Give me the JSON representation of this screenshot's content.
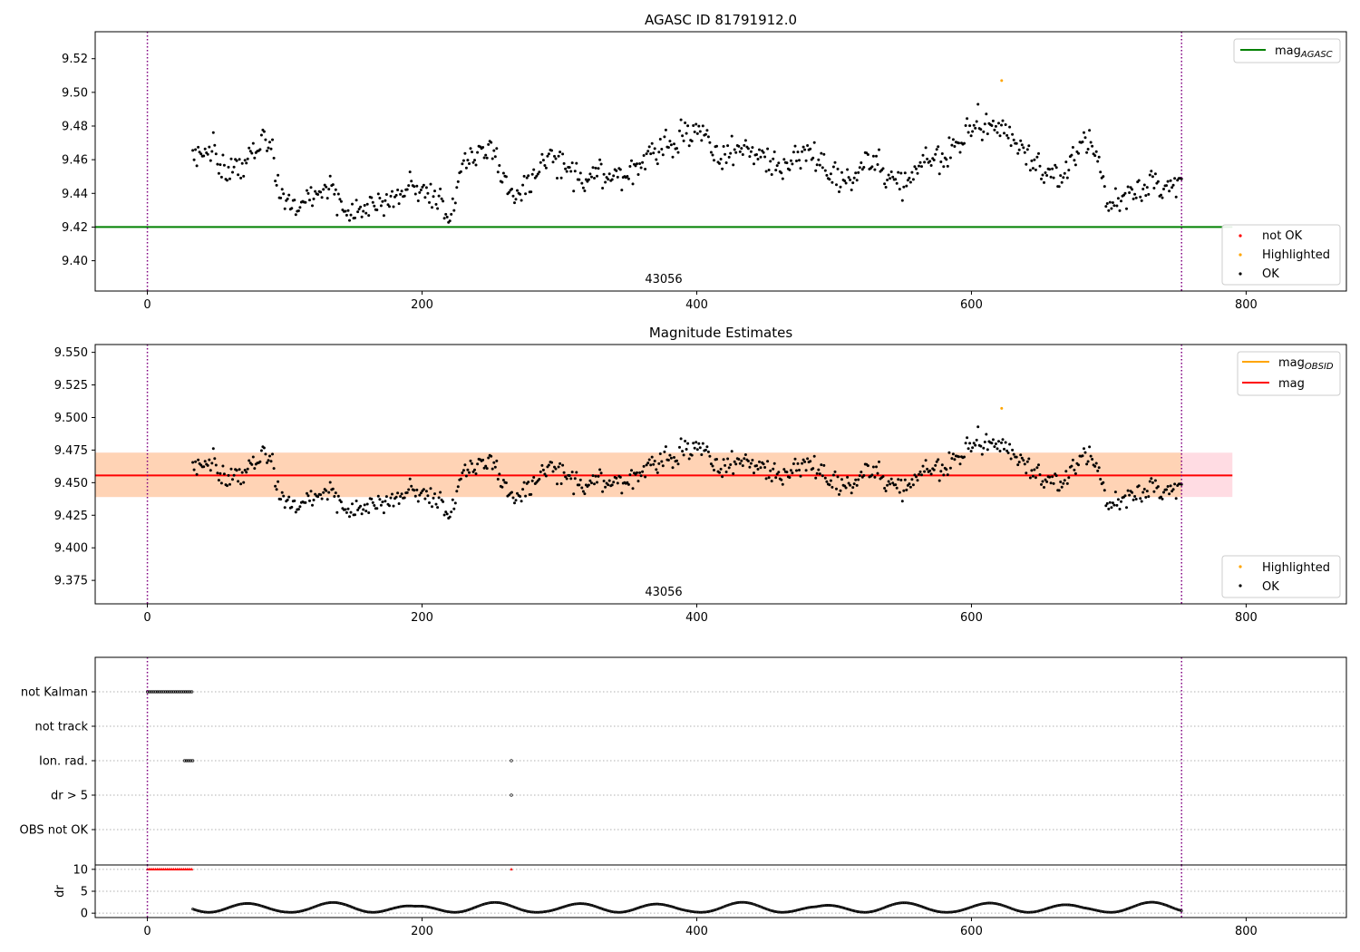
{
  "chart_data": [
    {
      "type": "scatter",
      "title": "AGASC ID 81791912.0",
      "xlim": [
        -38,
        873
      ],
      "ylim": [
        9.382,
        9.536
      ],
      "xticks": [
        "0",
        "200",
        "400",
        "600",
        "800"
      ],
      "yticks": [
        "9.40",
        "9.42",
        "9.44",
        "9.46",
        "9.48",
        "9.50",
        "9.52"
      ],
      "obsid_label": "43056",
      "obsid_bounds": [
        0,
        753
      ],
      "reference_line": {
        "name": "mag_AGASC",
        "value": 9.42,
        "x_range": [
          -38,
          790
        ],
        "color": "#008000"
      },
      "legend_upper": [
        {
          "label": "mag",
          "sub": "AGASC",
          "color": "#008000",
          "marker": "line"
        }
      ],
      "legend_lower": [
        {
          "label": "not OK",
          "color": "#ff0000",
          "marker": "dot"
        },
        {
          "label": "Highlighted",
          "color": "#ffa500",
          "marker": "dot"
        },
        {
          "label": "OK",
          "color": "#000000",
          "marker": "dot"
        }
      ],
      "series": [
        {
          "name": "OK",
          "color": "#000000",
          "x_range": [
            33,
            753
          ],
          "n": 720,
          "baseline": [
            [
              33,
              9.468
            ],
            [
              45,
              9.463
            ],
            [
              60,
              9.452
            ],
            [
              75,
              9.468
            ],
            [
              88,
              9.47
            ],
            [
              96,
              9.44
            ],
            [
              110,
              9.437
            ],
            [
              130,
              9.44
            ],
            [
              150,
              9.432
            ],
            [
              170,
              9.43
            ],
            [
              190,
              9.448
            ],
            [
              205,
              9.434
            ],
            [
              220,
              9.43
            ],
            [
              230,
              9.462
            ],
            [
              250,
              9.462
            ],
            [
              270,
              9.442
            ],
            [
              285,
              9.452
            ],
            [
              300,
              9.462
            ],
            [
              320,
              9.446
            ],
            [
              340,
              9.452
            ],
            [
              360,
              9.456
            ],
            [
              380,
              9.47
            ],
            [
              400,
              9.48
            ],
            [
              410,
              9.462
            ],
            [
              430,
              9.468
            ],
            [
              450,
              9.456
            ],
            [
              470,
              9.462
            ],
            [
              490,
              9.458
            ],
            [
              510,
              9.45
            ],
            [
              530,
              9.458
            ],
            [
              550,
              9.448
            ],
            [
              570,
              9.458
            ],
            [
              590,
              9.472
            ],
            [
              610,
              9.478
            ],
            [
              625,
              9.482
            ],
            [
              640,
              9.458
            ],
            [
              660,
              9.452
            ],
            [
              680,
              9.466
            ],
            [
              690,
              9.468
            ],
            [
              700,
              9.435
            ],
            [
              720,
              9.44
            ],
            [
              740,
              9.448
            ],
            [
              753,
              9.446
            ]
          ]
        },
        {
          "name": "Highlighted",
          "color": "#ffa500",
          "points": [
            [
              622,
              9.507
            ]
          ]
        }
      ]
    },
    {
      "type": "scatter",
      "title": "Magnitude Estimates",
      "xlim": [
        -38,
        873
      ],
      "ylim": [
        9.357,
        9.556
      ],
      "xticks": [
        "0",
        "200",
        "400",
        "600",
        "800"
      ],
      "yticks": [
        "9.375",
        "9.400",
        "9.425",
        "9.450",
        "9.475",
        "9.500",
        "9.525",
        "9.550"
      ],
      "obsid_label": "43056",
      "obsid_bounds": [
        0,
        753
      ],
      "mag_line": {
        "name": "mag",
        "value": 9.4555,
        "color": "#ff0000",
        "band": [
          9.439,
          9.473
        ],
        "band_color": "#ffdce3",
        "x_range": [
          -38,
          790
        ]
      },
      "mag_obsid": {
        "name": "mag_OBSID",
        "value": 9.4555,
        "color": "#ffa500",
        "band": [
          9.439,
          9.473
        ],
        "band_color": "#ffd3b5",
        "x_range": [
          0,
          753
        ]
      },
      "legend_upper": [
        {
          "label": "mag",
          "sub": "OBSID",
          "color": "#ffa500",
          "marker": "line"
        },
        {
          "label": "mag",
          "sub": "",
          "color": "#ff0000",
          "marker": "line"
        }
      ],
      "legend_lower": [
        {
          "label": "Highlighted",
          "color": "#ffa500",
          "marker": "dot"
        },
        {
          "label": "OK",
          "color": "#000000",
          "marker": "dot"
        }
      ],
      "series": [
        {
          "name": "OK",
          "color": "#000000",
          "same_as_panel": 0
        },
        {
          "name": "Highlighted",
          "color": "#ffa500",
          "points": [
            [
              622,
              9.507
            ]
          ]
        }
      ]
    },
    {
      "type": "scatter",
      "title": "",
      "xlim": [
        -38,
        873
      ],
      "categories": [
        "not Kalman",
        "not track",
        "Ion. rad.",
        "dr > 5",
        "OBS not OK"
      ],
      "obsid_bounds": [
        0,
        753
      ],
      "flags": [
        {
          "category": "not Kalman",
          "x_range": [
            0,
            33
          ]
        },
        {
          "category": "not track",
          "x_range": []
        },
        {
          "category": "Ion. rad.",
          "x_range": [
            27,
            33
          ],
          "extra": [
            265
          ]
        },
        {
          "category": "dr > 5",
          "x_range": [],
          "extra": [
            265
          ]
        },
        {
          "category": "OBS not OK",
          "x_range": []
        }
      ]
    },
    {
      "type": "scatter",
      "title": "",
      "ylabel": "dr",
      "xlim": [
        -38,
        873
      ],
      "ylim": [
        -1,
        11
      ],
      "xticks": [
        "0",
        "200",
        "400",
        "600",
        "800"
      ],
      "yticks": [
        "0",
        "5",
        "10"
      ],
      "obsid_bounds": [
        0,
        753
      ],
      "clipped": {
        "color": "#ff0000",
        "value": 10,
        "x_range": [
          0,
          33
        ],
        "extra": [
          265
        ]
      },
      "series": [
        {
          "name": "dr",
          "color": "#000000",
          "x_range": [
            33,
            753
          ],
          "min": 0.2,
          "max": 2.5
        }
      ]
    }
  ]
}
